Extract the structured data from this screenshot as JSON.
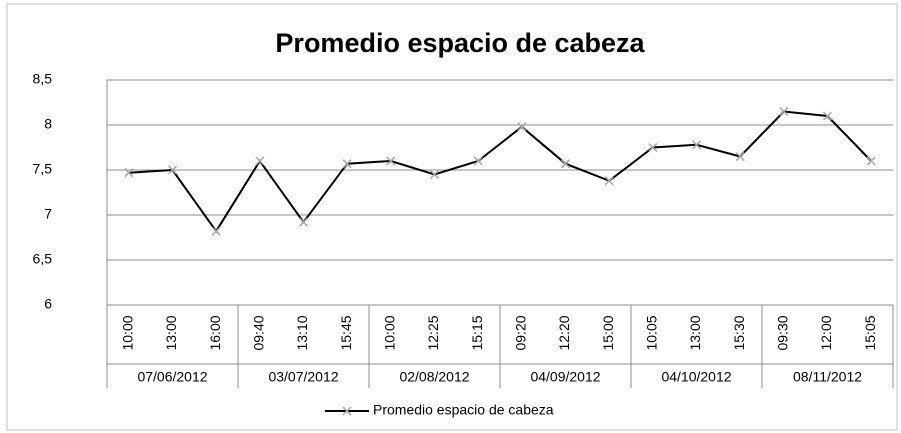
{
  "chart_data": {
    "type": "line",
    "title": "Promedio espacio de cabeza",
    "category_groups": [
      {
        "label": "07/06/2012",
        "categories": [
          "10:00",
          "13:00",
          "16:00"
        ]
      },
      {
        "label": "03/07/2012",
        "categories": [
          "09:40",
          "13:10",
          "15:45"
        ]
      },
      {
        "label": "02/08/2012",
        "categories": [
          "10:00",
          "12:25",
          "15:15"
        ]
      },
      {
        "label": "04/09/2012",
        "categories": [
          "09:20",
          "12:20",
          "15:00"
        ]
      },
      {
        "label": "04/10/2012",
        "categories": [
          "10:05",
          "13:00",
          "15:30"
        ]
      },
      {
        "label": "08/11/2012",
        "categories": [
          "09:30",
          "12:00",
          "15:05"
        ]
      }
    ],
    "series": [
      {
        "name": "Promedio espacio de cabeza",
        "color": "#000000",
        "marker_color": "#a6a6a6",
        "values": [
          7.47,
          7.5,
          6.82,
          7.6,
          6.92,
          7.57,
          7.6,
          7.45,
          7.6,
          7.98,
          7.57,
          7.38,
          7.75,
          7.78,
          7.65,
          8.15,
          8.1,
          7.6
        ]
      }
    ],
    "ylim": [
      6,
      8.5
    ],
    "yticks": [
      6,
      {
        "value": 6.5,
        "label": "6,5"
      },
      7,
      {
        "value": 7.5,
        "label": "7,5"
      },
      8,
      {
        "value": 8.5,
        "label": "8,5"
      }
    ],
    "grid": true,
    "legend": "bottom"
  }
}
